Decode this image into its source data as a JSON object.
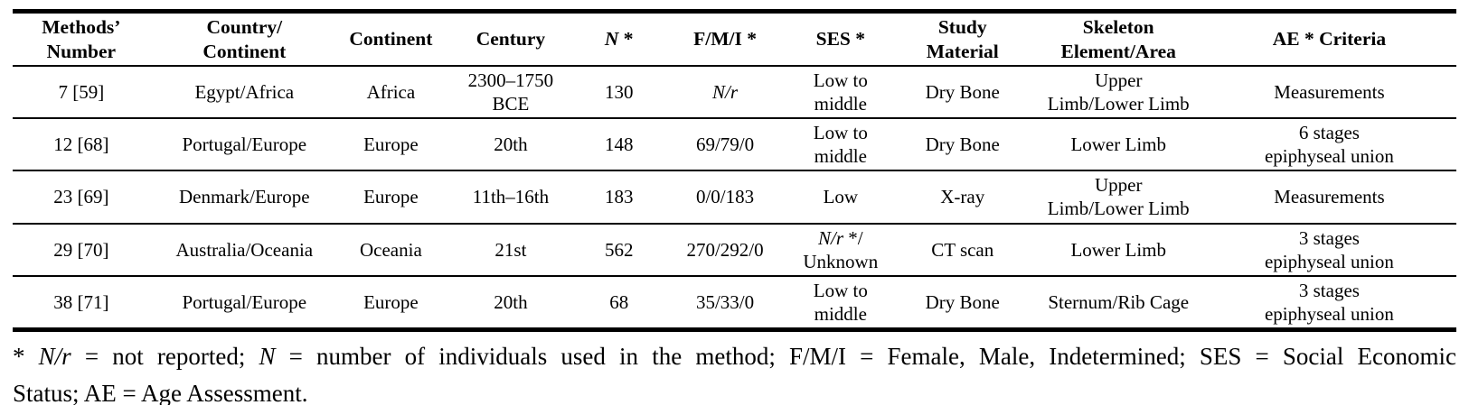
{
  "colors": {
    "text": "#000000",
    "border": "#000000",
    "background": "#ffffff"
  },
  "table": {
    "columns": [
      {
        "key": "methods-number",
        "label": [
          {
            "t": "Methods’\nNumber"
          }
        ]
      },
      {
        "key": "country-continent",
        "label": [
          {
            "t": "Country/\nContinent"
          }
        ]
      },
      {
        "key": "continent",
        "label": [
          {
            "t": "Continent"
          }
        ]
      },
      {
        "key": "century",
        "label": [
          {
            "t": "Century"
          }
        ]
      },
      {
        "key": "n",
        "label": [
          {
            "t": "N",
            "i": true
          },
          {
            "t": " *"
          }
        ]
      },
      {
        "key": "fmi",
        "label": [
          {
            "t": "F/M/I *"
          }
        ]
      },
      {
        "key": "ses",
        "label": [
          {
            "t": "SES *"
          }
        ]
      },
      {
        "key": "study-material",
        "label": [
          {
            "t": "Study\nMaterial"
          }
        ]
      },
      {
        "key": "skeleton-element",
        "label": [
          {
            "t": "Skeleton\nElement/Area"
          }
        ]
      },
      {
        "key": "ae-criteria",
        "label": [
          {
            "t": "AE * Criteria"
          }
        ]
      }
    ],
    "rows": [
      [
        [
          {
            "t": "7 [59]"
          }
        ],
        [
          {
            "t": "Egypt/Africa"
          }
        ],
        [
          {
            "t": "Africa"
          }
        ],
        [
          {
            "t": "2300–1750\nBCE"
          }
        ],
        [
          {
            "t": "130"
          }
        ],
        [
          {
            "t": "N/r",
            "i": true
          }
        ],
        [
          {
            "t": "Low to\nmiddle"
          }
        ],
        [
          {
            "t": "Dry Bone"
          }
        ],
        [
          {
            "t": "Upper\nLimb/Lower Limb"
          }
        ],
        [
          {
            "t": "Measurements"
          }
        ]
      ],
      [
        [
          {
            "t": "12 [68]"
          }
        ],
        [
          {
            "t": "Portugal/Europe"
          }
        ],
        [
          {
            "t": "Europe"
          }
        ],
        [
          {
            "t": "20th"
          }
        ],
        [
          {
            "t": "148"
          }
        ],
        [
          {
            "t": "69/79/0"
          }
        ],
        [
          {
            "t": "Low to\nmiddle"
          }
        ],
        [
          {
            "t": "Dry Bone"
          }
        ],
        [
          {
            "t": "Lower Limb"
          }
        ],
        [
          {
            "t": "6 stages\nepiphyseal union"
          }
        ]
      ],
      [
        [
          {
            "t": "23 [69]"
          }
        ],
        [
          {
            "t": "Denmark/Europe"
          }
        ],
        [
          {
            "t": "Europe"
          }
        ],
        [
          {
            "t": "11th–16th"
          }
        ],
        [
          {
            "t": "183"
          }
        ],
        [
          {
            "t": "0/0/183"
          }
        ],
        [
          {
            "t": "Low"
          }
        ],
        [
          {
            "t": "X-ray"
          }
        ],
        [
          {
            "t": "Upper\nLimb/Lower Limb"
          }
        ],
        [
          {
            "t": "Measurements"
          }
        ]
      ],
      [
        [
          {
            "t": "29 [70]"
          }
        ],
        [
          {
            "t": "Australia/Oceania"
          }
        ],
        [
          {
            "t": "Oceania"
          }
        ],
        [
          {
            "t": "21st"
          }
        ],
        [
          {
            "t": "562"
          }
        ],
        [
          {
            "t": "270/292/0"
          }
        ],
        [
          {
            "t": "N/r",
            "i": true
          },
          {
            "t": " */\nUnknown"
          }
        ],
        [
          {
            "t": "CT scan"
          }
        ],
        [
          {
            "t": "Lower Limb"
          }
        ],
        [
          {
            "t": "3 stages\nepiphyseal union"
          }
        ]
      ],
      [
        [
          {
            "t": "38 [71]"
          }
        ],
        [
          {
            "t": "Portugal/Europe"
          }
        ],
        [
          {
            "t": "Europe"
          }
        ],
        [
          {
            "t": "20th"
          }
        ],
        [
          {
            "t": "68"
          }
        ],
        [
          {
            "t": "35/33/0"
          }
        ],
        [
          {
            "t": "Low to\nmiddle"
          }
        ],
        [
          {
            "t": "Dry Bone"
          }
        ],
        [
          {
            "t": "Sternum/Rib Cage"
          }
        ],
        [
          {
            "t": "3 stages\nepiphyseal union"
          }
        ]
      ]
    ]
  },
  "footnote": {
    "lines": [
      [
        {
          "t": "* "
        },
        {
          "t": "N/r",
          "i": true
        },
        {
          "t": " = not reported; "
        },
        {
          "t": "N",
          "i": true
        },
        {
          "t": " = number of individuals used in the method; F/M/I = Female, Male, Indetermined; SES = Social Economic"
        }
      ],
      [
        {
          "t": "Status; AE = Age Assessment."
        }
      ]
    ]
  }
}
